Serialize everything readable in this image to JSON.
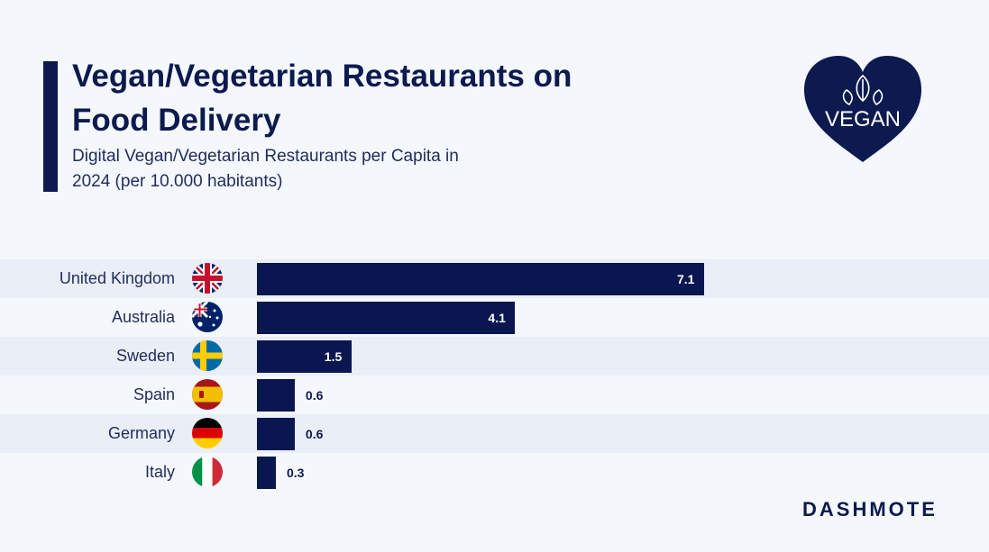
{
  "header": {
    "title": "Vegan/Vegetarian Restaurants on Food Delivery",
    "subtitle": "Digital Vegan/Vegetarian Restaurants per Capita in 2024 (per 10.000 habitants)"
  },
  "badge": {
    "text": "VEGAN",
    "color": "#0c1a4f"
  },
  "brand": {
    "logo_text": "DASHMOTE"
  },
  "colors": {
    "bar": "#0a1650",
    "band": "#e9eef7",
    "background": "#f4f7fb"
  },
  "chart_data": {
    "type": "bar",
    "orientation": "horizontal",
    "title": "Vegan/Vegetarian Restaurants on Food Delivery",
    "subtitle": "Digital Vegan/Vegetarian Restaurants per Capita in 2024 (per 10.000 habitants)",
    "categories": [
      "United Kingdom",
      "Australia",
      "Sweden",
      "Spain",
      "Germany",
      "Italy"
    ],
    "values": [
      7.1,
      4.1,
      1.5,
      0.6,
      0.6,
      0.3
    ],
    "value_labels": [
      "7.1",
      "4.1",
      "1.5",
      "0.6",
      "0.6",
      "0.3"
    ],
    "flags": [
      "uk-flag-icon",
      "australia-flag-icon",
      "sweden-flag-icon",
      "spain-flag-icon",
      "germany-flag-icon",
      "italy-flag-icon"
    ],
    "xlim": [
      0,
      7.1
    ],
    "xlabel": "",
    "ylabel": "",
    "grid": false,
    "legend": "none"
  }
}
